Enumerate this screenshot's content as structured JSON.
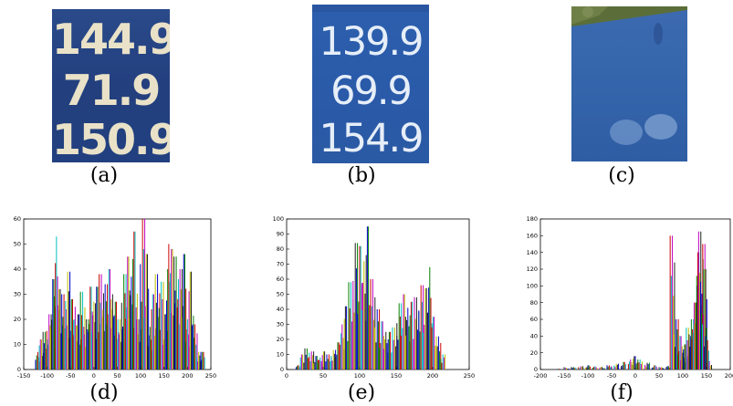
{
  "panels": {
    "a": {
      "caption": "(a)",
      "prices": [
        "144.9",
        "71.9",
        "150.9"
      ]
    },
    "b": {
      "caption": "(b)",
      "prices": [
        "139.9",
        "69.9",
        "154.9"
      ]
    },
    "c": {
      "caption": "(c)"
    },
    "d": {
      "caption": "(d)"
    },
    "e": {
      "caption": "(e)"
    },
    "f": {
      "caption": "(f)"
    }
  },
  "colors": {
    "series": [
      "#0000cc",
      "#008000",
      "#cc0000",
      "#00bfbf",
      "#bf00bf",
      "#bfbf00",
      "#202020"
    ]
  },
  "chart_data": [
    {
      "type": "bar",
      "panel": "d",
      "xlim": [
        -150,
        250
      ],
      "ylim": [
        0,
        60
      ],
      "xticks": [
        -150,
        -100,
        -50,
        0,
        50,
        100,
        150,
        200,
        250
      ],
      "yticks": [
        0,
        10,
        20,
        30,
        40,
        50,
        60
      ],
      "x": [
        -120,
        -112,
        -104,
        -96,
        -88,
        -80,
        -72,
        -64,
        -56,
        -48,
        -40,
        -32,
        -24,
        -16,
        -8,
        0,
        8,
        16,
        24,
        32,
        40,
        48,
        56,
        64,
        72,
        80,
        88,
        96,
        104,
        112,
        120,
        128,
        136,
        144,
        152,
        160,
        168,
        176,
        184,
        192,
        200,
        208,
        216,
        224,
        232
      ],
      "values": [
        7,
        12,
        15,
        22,
        36,
        53,
        32,
        30,
        39,
        28,
        25,
        22,
        31,
        20,
        33,
        27,
        33,
        38,
        34,
        40,
        30,
        27,
        20,
        38,
        45,
        37,
        55,
        20,
        60,
        46,
        17,
        30,
        38,
        35,
        22,
        50,
        48,
        45,
        40,
        46,
        20,
        39,
        18,
        7,
        7
      ]
    },
    {
      "type": "bar",
      "panel": "e",
      "xlim": [
        0,
        250
      ],
      "ylim": [
        0,
        100
      ],
      "xticks": [
        0,
        50,
        100,
        150,
        200,
        250
      ],
      "yticks": [
        0,
        10,
        20,
        30,
        40,
        50,
        60,
        70,
        80,
        90,
        100
      ],
      "x": [
        16,
        22,
        28,
        34,
        40,
        46,
        52,
        58,
        64,
        70,
        76,
        82,
        88,
        94,
        100,
        106,
        112,
        118,
        124,
        130,
        136,
        142,
        148,
        154,
        160,
        166,
        172,
        178,
        184,
        190,
        196,
        202,
        208,
        214
      ],
      "values": [
        3,
        10,
        14,
        12,
        9,
        8,
        12,
        10,
        13,
        18,
        30,
        42,
        58,
        84,
        82,
        72,
        95,
        60,
        40,
        32,
        25,
        25,
        28,
        44,
        50,
        41,
        45,
        48,
        56,
        54,
        68,
        35,
        22,
        10
      ]
    },
    {
      "type": "bar",
      "panel": "f",
      "xlim": [
        -200,
        200
      ],
      "ylim": [
        0,
        180
      ],
      "xticks": [
        -200,
        -150,
        -100,
        -50,
        0,
        50,
        100,
        150,
        200
      ],
      "yticks": [
        0,
        20,
        40,
        60,
        80,
        100,
        120,
        140,
        160,
        180
      ],
      "x": [
        -160,
        -145,
        -130,
        -115,
        -100,
        -85,
        -70,
        -55,
        -40,
        -25,
        -10,
        0,
        10,
        25,
        40,
        55,
        70,
        78,
        86,
        94,
        100,
        106,
        112,
        118,
        124,
        130,
        134,
        138,
        142,
        146,
        150,
        156
      ],
      "values": [
        1,
        2,
        3,
        4,
        5,
        4,
        3,
        5,
        7,
        9,
        12,
        16,
        12,
        8,
        5,
        3,
        4,
        160,
        60,
        40,
        20,
        30,
        50,
        60,
        80,
        100,
        140,
        165,
        150,
        120,
        50,
        10
      ]
    }
  ]
}
